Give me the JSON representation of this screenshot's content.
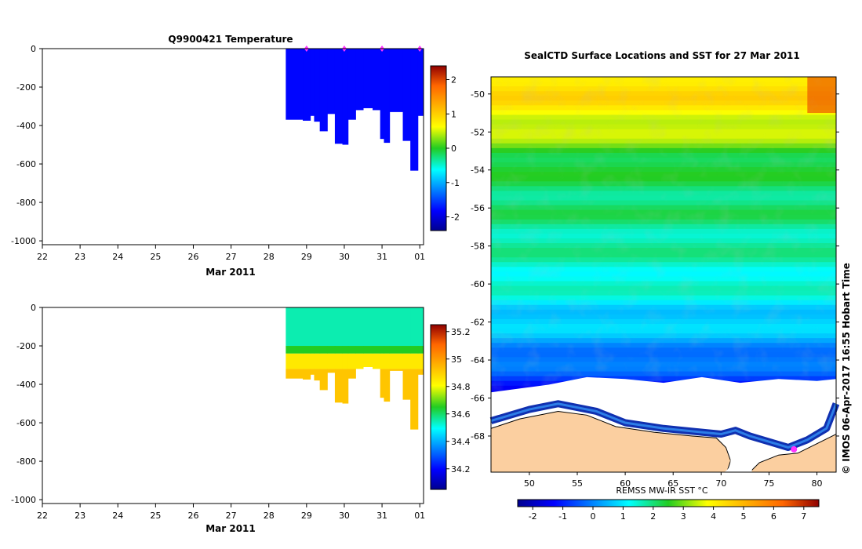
{
  "credit": "© IMOS 06-Apr-2017 16:55 Hobart Time",
  "colors": {
    "land": "#fbcfa0",
    "seal_marker": "#ff33ff",
    "ice_edge_outline": "#000000"
  },
  "chart_data": [
    {
      "type": "heatmap",
      "name": "temperature-section",
      "title": "Q9900421  Temperature",
      "xlabel": "Mar 2011",
      "ylabel": "",
      "x_tick_labels": [
        "22",
        "23",
        "24",
        "25",
        "26",
        "27",
        "28",
        "29",
        "30",
        "31",
        "01"
      ],
      "x_tick_days": [
        22,
        23,
        24,
        25,
        26,
        27,
        28,
        29,
        30,
        31,
        32
      ],
      "xlim_days": [
        22,
        32.1
      ],
      "y_ticks": [
        0,
        -200,
        -400,
        -600,
        -800,
        -1000
      ],
      "ylim": [
        -1020,
        0
      ],
      "colorbar": {
        "ticks": [
          2,
          1,
          0,
          -1,
          -2
        ],
        "range": [
          -2.4,
          2.4
        ],
        "colormap": "jet"
      },
      "profile_start_day": 28.45,
      "profile_end_day": 32.1,
      "value_description": "approximately -1.8 °C throughout sampled depths",
      "uniform_value": -1.8,
      "dive_max_depth_by_day": [
        {
          "day": 28.45,
          "depth": -370
        },
        {
          "day": 28.9,
          "depth": -375
        },
        {
          "day": 29.1,
          "depth": -350
        },
        {
          "day": 29.2,
          "depth": -380
        },
        {
          "day": 29.35,
          "depth": -430
        },
        {
          "day": 29.55,
          "depth": -340
        },
        {
          "day": 29.75,
          "depth": -495
        },
        {
          "day": 29.95,
          "depth": -500
        },
        {
          "day": 30.1,
          "depth": -370
        },
        {
          "day": 30.3,
          "depth": -320
        },
        {
          "day": 30.5,
          "depth": -310
        },
        {
          "day": 30.75,
          "depth": -320
        },
        {
          "day": 30.95,
          "depth": -470
        },
        {
          "day": 31.05,
          "depth": -490
        },
        {
          "day": 31.2,
          "depth": -330
        },
        {
          "day": 31.55,
          "depth": -480
        },
        {
          "day": 31.75,
          "depth": -635
        },
        {
          "day": 31.95,
          "depth": -350
        }
      ],
      "markers_days": [
        29,
        30,
        31,
        32
      ]
    },
    {
      "type": "heatmap",
      "name": "salinity-section",
      "title": "",
      "xlabel": "Mar 2011",
      "ylabel": "",
      "x_tick_labels": [
        "22",
        "23",
        "24",
        "25",
        "26",
        "27",
        "28",
        "29",
        "30",
        "31",
        "01"
      ],
      "x_tick_days": [
        22,
        23,
        24,
        25,
        26,
        27,
        28,
        29,
        30,
        31,
        32
      ],
      "xlim_days": [
        22,
        32.1
      ],
      "y_ticks": [
        0,
        -200,
        -400,
        -600,
        -800,
        -1000
      ],
      "ylim": [
        -1020,
        0
      ],
      "colorbar": {
        "ticks": [
          35.2,
          35,
          34.8,
          34.6,
          34.4,
          34.2
        ],
        "range": [
          34.05,
          35.25
        ],
        "colormap": "jet"
      },
      "layers": [
        {
          "from_depth": 0,
          "to_depth": -200,
          "value": 34.55
        },
        {
          "from_depth": -200,
          "to_depth": -240,
          "value": 34.65
        },
        {
          "from_depth": -240,
          "to_depth": -320,
          "value": 34.85
        },
        {
          "from_depth": -320,
          "to_depth": -700,
          "value": 34.92
        }
      ]
    },
    {
      "type": "heatmap",
      "name": "sst-map",
      "title": "SealCTD Surface Locations and SST for 27 Mar 2011",
      "xlabel": "",
      "ylabel": "",
      "x_ticks": [
        50,
        55,
        60,
        65,
        70,
        75,
        80
      ],
      "xlim": [
        46,
        82
      ],
      "y_ticks": [
        -50,
        -52,
        -54,
        -56,
        -58,
        -60,
        -62,
        -64,
        -66,
        -68
      ],
      "ylim": [
        -69.9,
        -49.1
      ],
      "colorbar": {
        "label": "REMSS MW-IR SST °C",
        "ticks": [
          -2,
          -1,
          0,
          1,
          2,
          3,
          4,
          5,
          6,
          7
        ],
        "range": [
          -2.5,
          7.5
        ],
        "colormap": "jet"
      },
      "sst_by_latitude": [
        {
          "lat": -49.1,
          "sst": 4.4
        },
        {
          "lat": -50,
          "sst": 4.3
        },
        {
          "lat": -51,
          "sst": 3.9
        },
        {
          "lat": -52,
          "sst": 3.3
        },
        {
          "lat": -53,
          "sst": 2.6
        },
        {
          "lat": -54,
          "sst": 2.2
        },
        {
          "lat": -56,
          "sst": 2.0
        },
        {
          "lat": -58,
          "sst": 1.7
        },
        {
          "lat": -60,
          "sst": 1.4
        },
        {
          "lat": -61,
          "sst": 1.0
        },
        {
          "lat": -62,
          "sst": 0.7
        },
        {
          "lat": -63,
          "sst": 0.3
        },
        {
          "lat": -64,
          "sst": -0.2
        },
        {
          "lat": -65,
          "sst": -0.8
        },
        {
          "lat": -66,
          "sst": -1.4
        }
      ],
      "seal_position": {
        "lon": 77.6,
        "lat": -68.7
      }
    }
  ]
}
